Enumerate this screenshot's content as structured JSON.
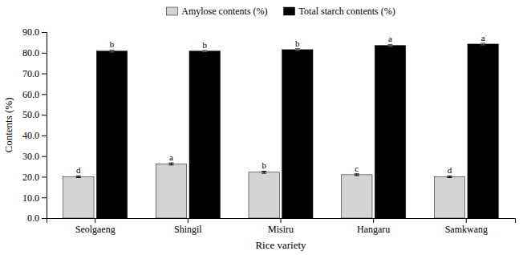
{
  "chart_data": {
    "type": "bar",
    "xlabel": "Rice variety",
    "ylabel": "Contents (%)",
    "categories": [
      "Seolgaeng",
      "Shingil",
      "Misiru",
      "Hangaru",
      "Samkwang"
    ],
    "series": [
      {
        "name": "Amylose contents (%)",
        "color": "#d3d3d3",
        "values": [
          20.0,
          26.2,
          22.2,
          21.0,
          20.0
        ],
        "errors": [
          0.4,
          0.5,
          0.5,
          0.4,
          0.4
        ],
        "annotations": [
          "d",
          "a",
          "b",
          "c",
          "d"
        ]
      },
      {
        "name": "Total starch contents (%)",
        "color": "#000000",
        "values": [
          80.8,
          80.8,
          81.5,
          83.5,
          84.2
        ],
        "errors": [
          0.5,
          0.3,
          0.5,
          0.5,
          0.4
        ],
        "annotations": [
          "b",
          "b",
          "b",
          "a",
          "a"
        ]
      }
    ],
    "ylim": [
      0.0,
      90.0
    ],
    "yticks": [
      {
        "value": 0.0,
        "label": "0.0"
      },
      {
        "value": 10.0,
        "label": "10.0"
      },
      {
        "value": 20.0,
        "label": "20.0"
      },
      {
        "value": 30.0,
        "label": "30.0"
      },
      {
        "value": 40.0,
        "label": "40.0"
      },
      {
        "value": 50.0,
        "label": "50.0"
      },
      {
        "value": 60.0,
        "label": "60.0"
      },
      {
        "value": 70.0,
        "label": "70.0"
      },
      {
        "value": 80.0,
        "label": "80.0"
      },
      {
        "value": 90.0,
        "label": "90.0"
      }
    ],
    "grid": false,
    "legend": "top"
  }
}
